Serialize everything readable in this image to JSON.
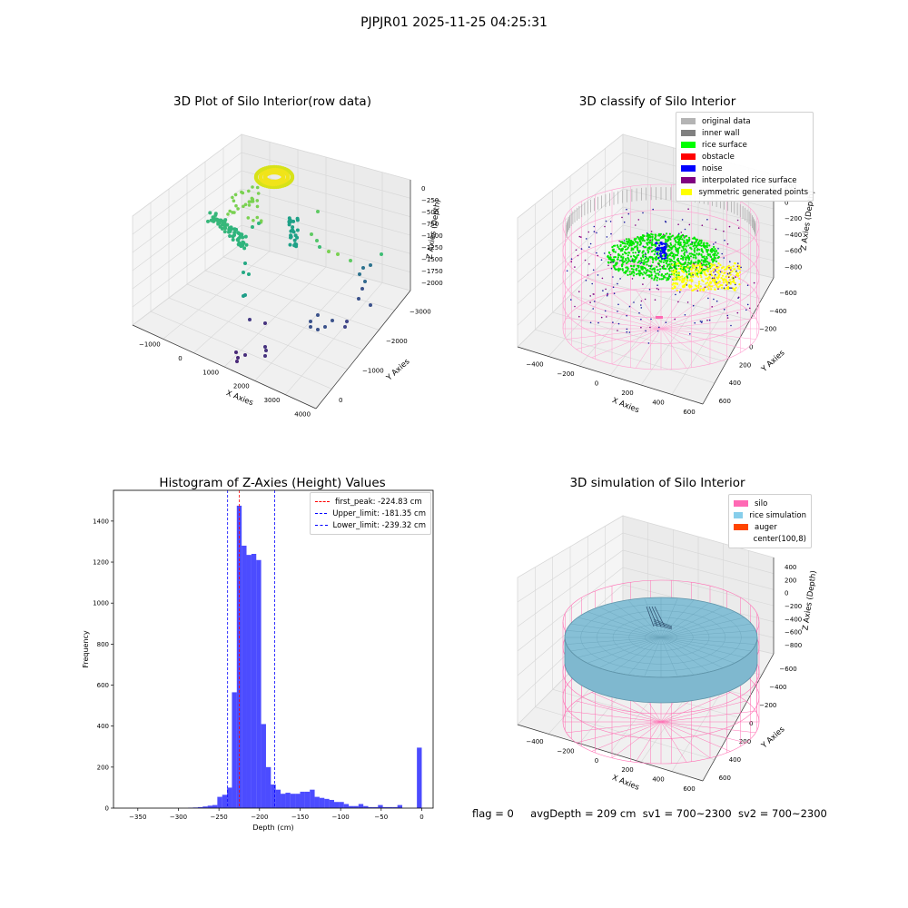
{
  "suptitle": "PJPJR01 2025-11-25 04:25:31",
  "panels": {
    "raw": {
      "title": "3D Plot of Silo Interior(row data)",
      "xlabel": "X Axies",
      "ylabel": "Y Axies",
      "zlabel": "Z Axies (Depth)",
      "xticks": [
        "−1000",
        "0",
        "1000",
        "2000",
        "3000",
        "4000"
      ],
      "yticks": [
        "0",
        "−1000",
        "−2000",
        "−3000"
      ],
      "zticks": [
        "0",
        "−250",
        "−500",
        "−750",
        "−1000",
        "−1250",
        "−1500",
        "−1750",
        "−2000"
      ]
    },
    "classify": {
      "title": "3D classify of Silo Interior",
      "xlabel": "X Axies",
      "ylabel": "Y Axies",
      "zlabel": "Z Axies (Depth)",
      "xticks": [
        "−400",
        "−200",
        "0",
        "200",
        "400",
        "600"
      ],
      "yticks": [
        "600",
        "400",
        "200",
        "0",
        "−200",
        "−400",
        "−600"
      ],
      "zticks": [
        "200",
        "0",
        "−200",
        "−400",
        "−600",
        "−800"
      ],
      "ztop_tick": "0",
      "legend": [
        {
          "label": "original data",
          "color": "#b4b4b4"
        },
        {
          "label": "inner wall",
          "color": "#808080"
        },
        {
          "label": "rice surface",
          "color": "#00ff00"
        },
        {
          "label": "obstacle",
          "color": "#ff0000"
        },
        {
          "label": "noise",
          "color": "#0000ff"
        },
        {
          "label": "interpolated rice surface",
          "color": "#800080"
        },
        {
          "label": "symmetric generated points",
          "color": "#ffff00"
        }
      ]
    },
    "sim": {
      "title": "3D simulation of Silo Interior",
      "xlabel": "X Axies",
      "ylabel": "Y Axies",
      "zlabel": "Z Axies (Depth)",
      "xticks": [
        "−400",
        "−200",
        "0",
        "200",
        "400",
        "600"
      ],
      "yticks": [
        "600",
        "400",
        "200",
        "0",
        "−200",
        "−400",
        "−600"
      ],
      "zticks": [
        "400",
        "200",
        "0",
        "−200",
        "−400",
        "−600",
        "−800"
      ],
      "legend": [
        {
          "label": "silo",
          "color": "#ff69b4"
        },
        {
          "label": "rice simulation",
          "color": "#87ceeb"
        },
        {
          "label": "auger",
          "color": "#ff4500"
        },
        {
          "label": "center(100,8)",
          "color": ""
        }
      ]
    }
  },
  "chart_data": {
    "type": "bar",
    "title": "Histogram of Z-Axies (Height) Values",
    "xlabel": "Depth (cm)",
    "ylabel": "Frequency",
    "xlim": [
      -380,
      14
    ],
    "ylim": [
      0,
      1550
    ],
    "xticks": [
      -350,
      -300,
      -250,
      -200,
      -150,
      -100,
      -50,
      0
    ],
    "xtick_labels": [
      "−350",
      "−300",
      "−250",
      "−200",
      "−150",
      "−100",
      "−50",
      "0"
    ],
    "yticks": [
      0,
      200,
      400,
      600,
      800,
      1000,
      1200,
      1400
    ],
    "bar_color": "#0000ff",
    "bin_width": 6,
    "bins": [
      {
        "x": -285,
        "count": 2
      },
      {
        "x": -279,
        "count": 3
      },
      {
        "x": -273,
        "count": 5
      },
      {
        "x": -267,
        "count": 8
      },
      {
        "x": -261,
        "count": 12
      },
      {
        "x": -255,
        "count": 15
      },
      {
        "x": -249,
        "count": 55
      },
      {
        "x": -243,
        "count": 65
      },
      {
        "x": -237,
        "count": 100
      },
      {
        "x": -231,
        "count": 565
      },
      {
        "x": -225,
        "count": 1475
      },
      {
        "x": -219,
        "count": 1280
      },
      {
        "x": -213,
        "count": 1235
      },
      {
        "x": -207,
        "count": 1240
      },
      {
        "x": -201,
        "count": 1210
      },
      {
        "x": -195,
        "count": 410
      },
      {
        "x": -189,
        "count": 200
      },
      {
        "x": -183,
        "count": 115
      },
      {
        "x": -177,
        "count": 90
      },
      {
        "x": -171,
        "count": 70
      },
      {
        "x": -165,
        "count": 75
      },
      {
        "x": -159,
        "count": 70
      },
      {
        "x": -153,
        "count": 70
      },
      {
        "x": -147,
        "count": 80
      },
      {
        "x": -141,
        "count": 80
      },
      {
        "x": -135,
        "count": 90
      },
      {
        "x": -129,
        "count": 55
      },
      {
        "x": -123,
        "count": 50
      },
      {
        "x": -117,
        "count": 45
      },
      {
        "x": -111,
        "count": 40
      },
      {
        "x": -105,
        "count": 30
      },
      {
        "x": -99,
        "count": 30
      },
      {
        "x": -93,
        "count": 20
      },
      {
        "x": -87,
        "count": 10
      },
      {
        "x": -81,
        "count": 10
      },
      {
        "x": -75,
        "count": 20
      },
      {
        "x": -69,
        "count": 10
      },
      {
        "x": -63,
        "count": 5
      },
      {
        "x": -57,
        "count": 5
      },
      {
        "x": -51,
        "count": 15
      },
      {
        "x": -45,
        "count": 5
      },
      {
        "x": -39,
        "count": 5
      },
      {
        "x": -33,
        "count": 5
      },
      {
        "x": -27,
        "count": 15
      },
      {
        "x": -21,
        "count": 0
      },
      {
        "x": -15,
        "count": 0
      },
      {
        "x": -9,
        "count": 0
      },
      {
        "x": -3,
        "count": 295
      }
    ],
    "vlines": [
      {
        "label": "first_peak: -224.83 cm",
        "value": -224.83,
        "color": "#ff0000"
      },
      {
        "label": "Upper_limit: -181.35 cm",
        "value": -181.35,
        "color": "#0000ff"
      },
      {
        "label": "Lower_limit: -239.32 cm",
        "value": -239.32,
        "color": "#0000ff"
      }
    ]
  },
  "footer": {
    "flag": "flag = 0",
    "avg": "avgDepth = 209 cm",
    "sv1": "sv1 = 700~2300",
    "sv2": "sv2 = 700~2300"
  }
}
